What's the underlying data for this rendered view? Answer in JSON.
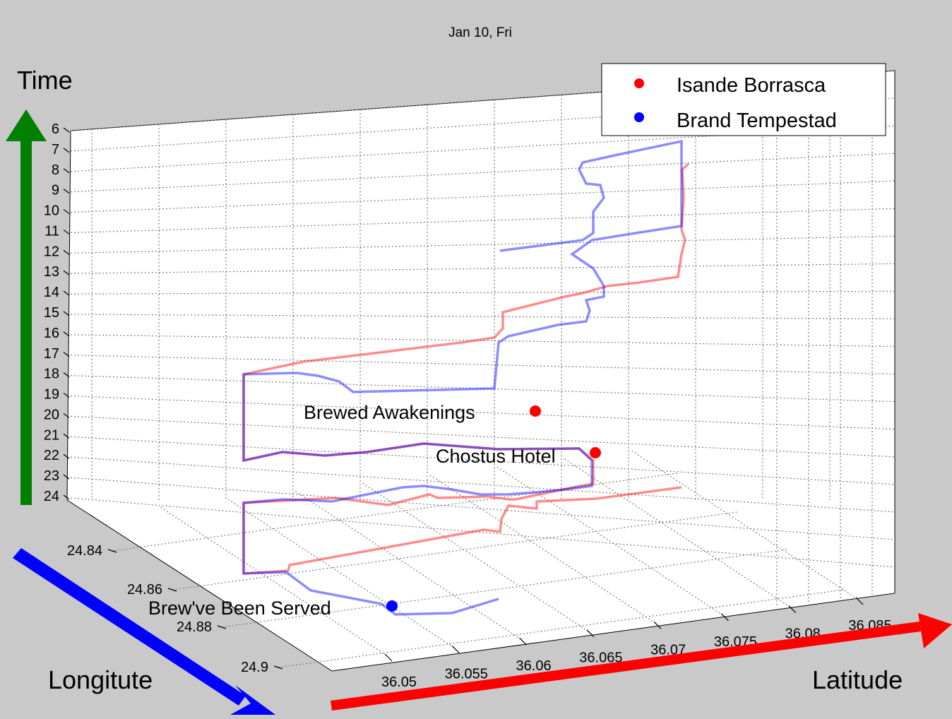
{
  "chart_data": {
    "type": "line",
    "title": "Jan 10, Fri",
    "axis_annotations": {
      "time": "Time",
      "longitude": "Longitute",
      "latitude": "Latitude"
    },
    "z_ticks": [
      "6",
      "7",
      "8",
      "9",
      "10",
      "11",
      "12",
      "13",
      "14",
      "15",
      "16",
      "17",
      "18",
      "19",
      "20",
      "21",
      "22",
      "23",
      "24"
    ],
    "lon_ticks": [
      "24.84",
      "24.86",
      "24.88",
      "24.9"
    ],
    "lat_ticks": [
      "36.05",
      "36.055",
      "36.06",
      "36.065",
      "36.07",
      "36.075",
      "36.08",
      "36.085"
    ],
    "zlim": [
      6,
      24
    ],
    "legend_position": "top-right",
    "series": [
      {
        "name": "Isande Borrasca",
        "color": "#ff0000"
      },
      {
        "name": "Brand Tempestad",
        "color": "#0000ff"
      }
    ],
    "annotations": [
      {
        "label": "Brewed Awakenings",
        "color": "#ff0000"
      },
      {
        "label": "Chostus Hotel",
        "color": "#ff0000"
      },
      {
        "label": "Brew've Been Served",
        "color": "#0000ff"
      }
    ],
    "arrow_colors": {
      "time": "#008000",
      "longitude": "#0000ff",
      "latitude": "#ff0000"
    }
  }
}
